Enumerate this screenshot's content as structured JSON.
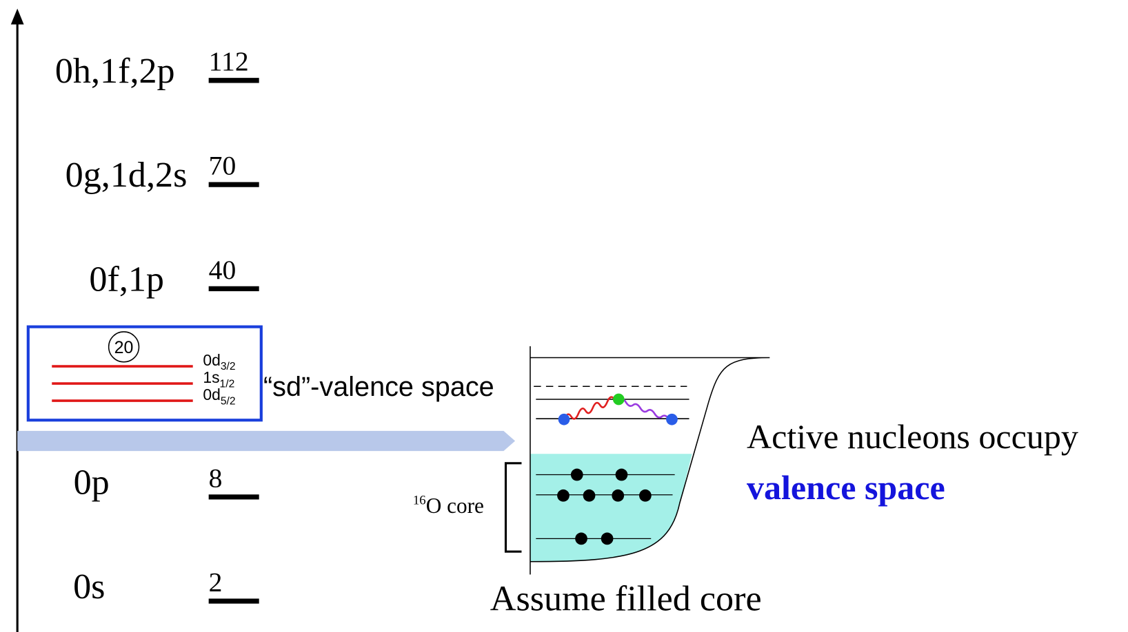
{
  "levels": [
    {
      "label": "0h,1f,2p",
      "number": "112"
    },
    {
      "label": "0g,1d,2s",
      "number": "70"
    },
    {
      "label": "0f,1p",
      "number": "40"
    },
    {
      "label": "0p",
      "number": "8"
    },
    {
      "label": "0s",
      "number": "2"
    }
  ],
  "valence_box": {
    "magic": "20",
    "orbitals": [
      {
        "n": "0d",
        "j": "3/2"
      },
      {
        "n": "1s",
        "j": "1/2"
      },
      {
        "n": "0d",
        "j": "5/2"
      }
    ]
  },
  "valence_label": "“sd”-valence space",
  "core_label": {
    "mass": "16",
    "text": "O core"
  },
  "caption": "Assume filled core",
  "note": {
    "line1": "Active nucleons occupy",
    "line2": "valence space"
  }
}
